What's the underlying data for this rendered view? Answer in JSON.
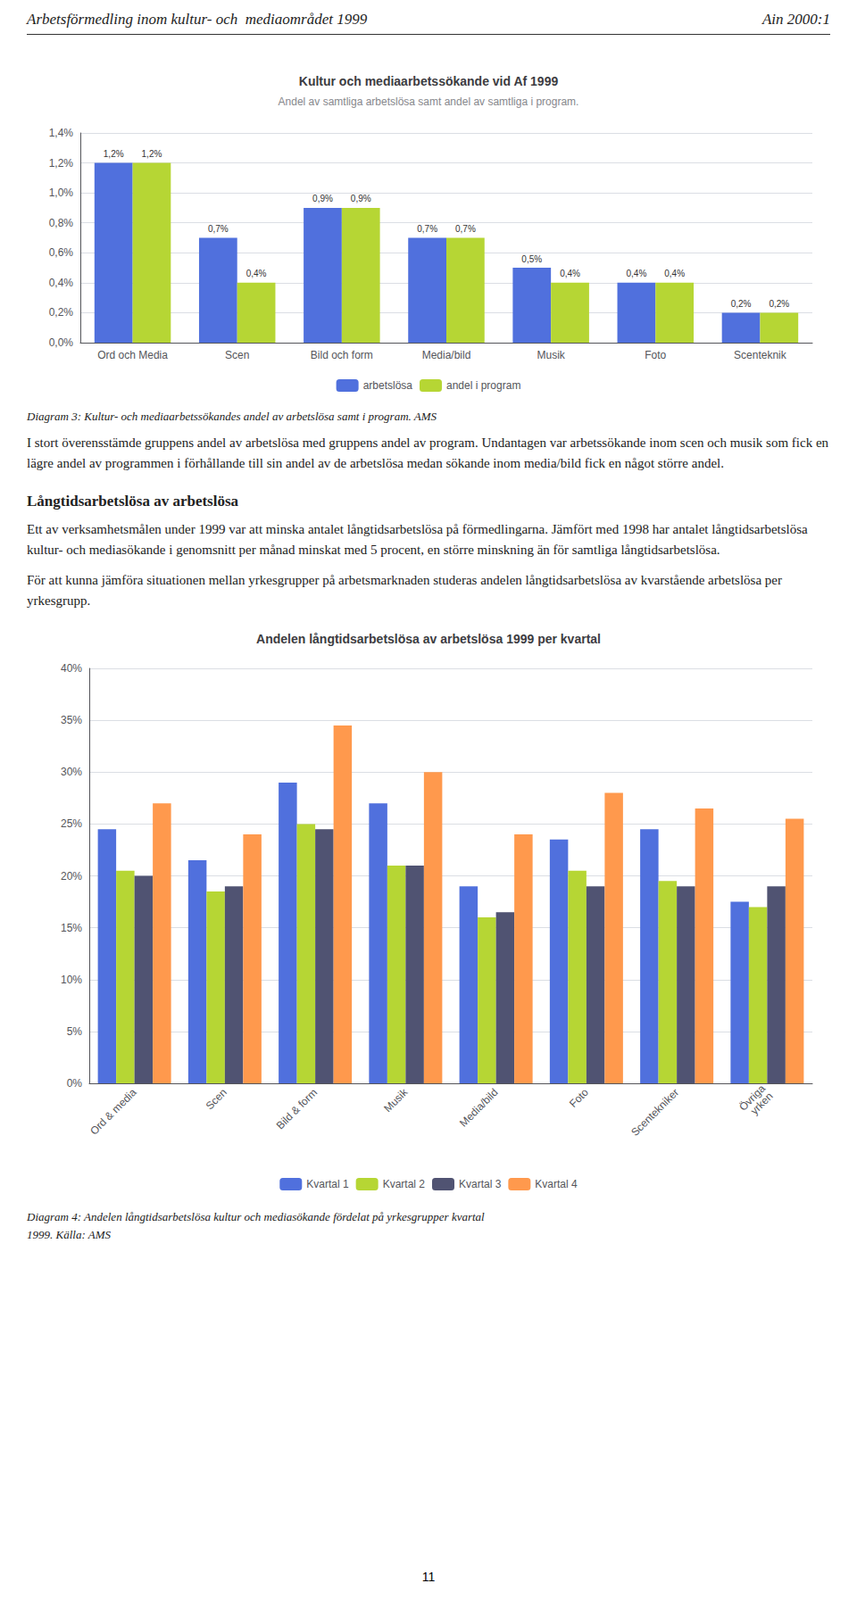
{
  "chart_data": [
    {
      "type": "bar",
      "title": "Kultur och mediaarbetssökande vid Af 1999",
      "subtitle": "Andel av samtliga arbetslösa samt andel av samtliga i program.",
      "categories": [
        "Ord och Media",
        "Scen",
        "Bild och form",
        "Media/bild",
        "Musik",
        "Foto",
        "Scenteknik"
      ],
      "series": [
        {
          "name": "arbetslösa",
          "values": [
            1.2,
            0.7,
            0.9,
            0.7,
            0.5,
            0.4,
            0.2
          ],
          "value_labels": [
            "1,2%",
            "0,7%",
            "0,9%",
            "0,7%",
            "0,5%",
            "0,4%",
            "0,2%"
          ]
        },
        {
          "name": "andel i program",
          "values": [
            1.2,
            0.4,
            0.9,
            0.7,
            0.4,
            0.4,
            0.2
          ],
          "value_labels": [
            "1,2%",
            "0,4%",
            "0,9%",
            "0,7%",
            "0,4%",
            "0,4%",
            "0,2%"
          ]
        }
      ],
      "ylim": [
        0,
        1.4
      ],
      "yticks": [
        {
          "value": 0.0,
          "label": "0,0%"
        },
        {
          "value": 0.2,
          "label": "0,2%"
        },
        {
          "value": 0.4,
          "label": "0,4%"
        },
        {
          "value": 0.6,
          "label": "0,6%"
        },
        {
          "value": 0.8,
          "label": "0,8%"
        },
        {
          "value": 1.0,
          "label": "1,0%"
        },
        {
          "value": 1.2,
          "label": "1,2%"
        },
        {
          "value": 1.4,
          "label": "1,4%"
        }
      ],
      "grid": true,
      "legend": "bottom",
      "data_labels": true,
      "annotations": [
        "Arbetsförmedling inom kultur- och  mediaområdet 1999",
        "Ain 2000:1",
        "Diagram 3: Kultur- och mediaarbetssökandes andel av arbetslösa samt i program. AMS",
        "I stort överensstämde gruppens andel av arbetslösa med gruppens andel av program. Undantagen var arbetssökande inom scen och musik som fick en lägre andel av programmen i förhållande till sin andel av de arbetslösa medan sökande inom media/bild fick en något större andel.",
        "Långtidsarbetslösa av arbetslösa",
        "Ett av verksamhetsmålen under 1999 var att minska antalet långtidsarbetslösa på förmedlingarna. Jämfört med 1998 har antalet långtidsarbetslösa kultur- och mediasökande i genomsnitt per månad minskat med 5 procent, en större minskning än för samtliga långtidsarbetslösa.",
        "För att kunna jämföra situationen mellan yrkesgrupper på arbetsmarknaden studeras andelen långtidsarbetslösa av kvarstående arbetslösa per yrkesgrupp."
      ]
    },
    {
      "type": "bar",
      "title": "Andelen långtidsarbetslösa av arbetslösa 1999 per kvartal",
      "categories": [
        "Ord & media",
        "Scen",
        "Bild & form",
        "Musik",
        "Media/bild",
        "Foto",
        "Scentekniker",
        "Övriga\nyrken"
      ],
      "series": [
        {
          "name": "Kvartal 1",
          "values": [
            24.5,
            21.5,
            29.0,
            27.0,
            19.0,
            23.5,
            24.5,
            17.5
          ]
        },
        {
          "name": "Kvartal 2",
          "values": [
            20.5,
            18.5,
            25.0,
            21.0,
            16.0,
            20.5,
            19.5,
            17.0
          ]
        },
        {
          "name": "Kvartal 3",
          "values": [
            20.0,
            19.0,
            24.5,
            21.0,
            16.5,
            19.0,
            19.0,
            19.0
          ]
        },
        {
          "name": "Kvartal 4",
          "values": [
            27.0,
            24.0,
            34.5,
            30.0,
            24.0,
            28.0,
            26.5,
            25.5
          ]
        }
      ],
      "ylim": [
        0,
        40
      ],
      "yticks": [
        {
          "value": 0,
          "label": "0%"
        },
        {
          "value": 5,
          "label": "5%"
        },
        {
          "value": 10,
          "label": "10%"
        },
        {
          "value": 15,
          "label": "15%"
        },
        {
          "value": 20,
          "label": "20%"
        },
        {
          "value": 25,
          "label": "25%"
        },
        {
          "value": 30,
          "label": "30%"
        },
        {
          "value": 35,
          "label": "35%"
        },
        {
          "value": 40,
          "label": "40%"
        }
      ],
      "grid": true,
      "legend": "bottom",
      "annotations": [
        "Diagram 4: Andelen långtidsarbetslösa kultur och mediasökande fördelat på yrkesgrupper kvartal\n1999. Källa: AMS",
        "11"
      ]
    }
  ]
}
